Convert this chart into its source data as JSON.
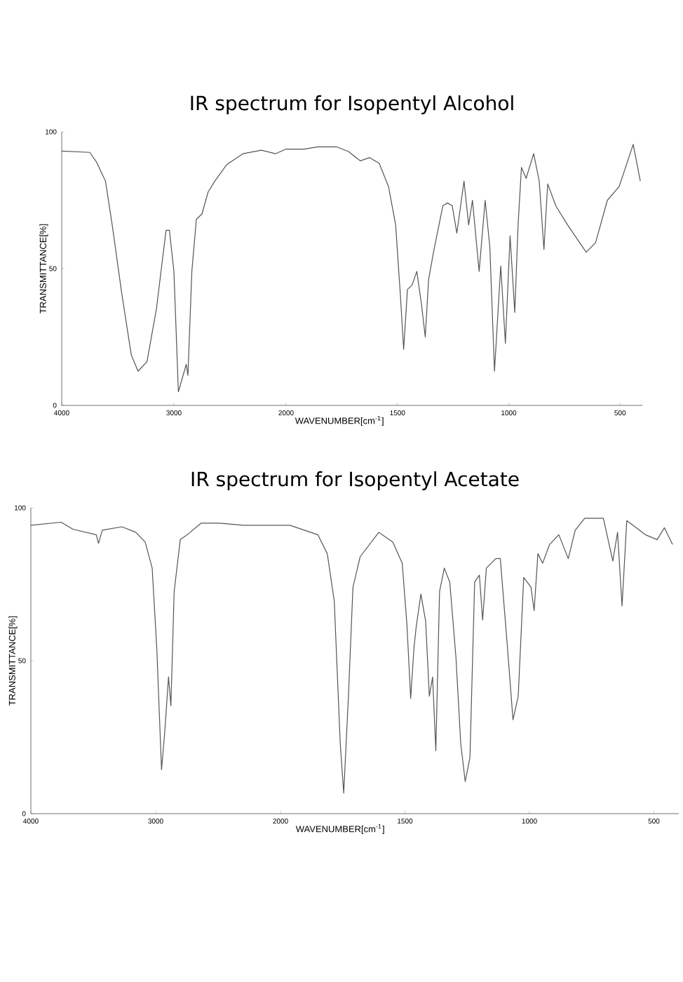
{
  "chart_data": [
    {
      "type": "line",
      "title": "IR spectrum for Isopentyl Alcohol",
      "ylabel": "TRANSMITTANCE[%]",
      "xlim": [
        4000,
        2000
      ],
      "ylim": [
        0,
        100
      ],
      "xticks": [
        4000,
        3000,
        2000
      ],
      "yticks": [
        0,
        50,
        100
      ],
      "series": [
        {
          "color": "#555555",
          "x": [
            4000,
            3750,
            3690,
            3610,
            3550,
            3465,
            3380,
            3320,
            3240,
            3155,
            3070,
            3040,
            3000,
            2960,
            2925,
            2890,
            2875,
            2840,
            2800,
            2750,
            2695,
            2635,
            2530,
            2385,
            2220,
            2095,
            2000
          ],
          "values": [
            93,
            92.5,
            89,
            82,
            66,
            41,
            18.5,
            12.5,
            16,
            35.5,
            64,
            64,
            49,
            5,
            10,
            15,
            11,
            49,
            68,
            70,
            78,
            82,
            88,
            92,
            93.3,
            92,
            93.7
          ]
        }
      ]
    },
    {
      "type": "line",
      "xlabel": "WAVENUMBER[cm$^{-1}$]",
      "xlim": [
        2000,
        400
      ],
      "ylim": [
        0,
        100
      ],
      "xticks": [
        1500,
        1000,
        500
      ],
      "tick_labels": "x",
      "series": [
        {
          "color": "#555555",
          "x": [
            2000,
            1920,
            1857,
            1772,
            1720,
            1667,
            1625,
            1582,
            1540,
            1508,
            1487,
            1472,
            1455,
            1434,
            1413,
            1392,
            1375,
            1360,
            1338,
            1296,
            1275,
            1254,
            1233,
            1201,
            1180,
            1163,
            1133,
            1106,
            1085,
            1064,
            1036,
            1015,
            994,
            973,
            958,
            943,
            922,
            888,
            863,
            842,
            825,
            789,
            736,
            652,
            610,
            557,
            504,
            441,
            409
          ],
          "values": [
            93.7,
            93.7,
            94.5,
            94.5,
            92.8,
            89.4,
            90.6,
            88.5,
            80,
            66,
            40.7,
            20.5,
            42.4,
            44,
            49,
            37,
            25,
            46,
            56,
            73,
            74,
            73,
            63,
            82,
            66,
            75,
            49,
            75,
            58,
            12.5,
            51,
            22.7,
            62,
            34,
            66,
            87,
            83,
            92,
            82,
            57,
            81,
            73,
            66,
            56,
            59.5,
            75,
            80,
            95.4,
            82
          ]
        }
      ]
    },
    {
      "type": "line",
      "title": "IR spectrum for Isopentyl Acetate",
      "ylabel": "TRANSMITTANCE[%]",
      "xlim": [
        4000,
        2000
      ],
      "ylim": [
        0,
        100
      ],
      "xticks": [
        4000,
        3000,
        2000
      ],
      "yticks": [
        0,
        50,
        100
      ],
      "series": [
        {
          "color": "#555555",
          "x": [
            4000,
            3757,
            3663,
            3476,
            3458,
            3428,
            3271,
            3159,
            3084,
            3028,
            2991,
            2953,
            2927,
            2897,
            2878,
            2852,
            2803,
            2747,
            2635,
            2485,
            2298,
            2074,
            2000
          ],
          "values": [
            94.3,
            95.3,
            93,
            91.2,
            88.4,
            92.7,
            93.8,
            92,
            88.8,
            80.3,
            54,
            14.4,
            26.8,
            44.7,
            35.3,
            72.6,
            89.6,
            91.2,
            95,
            95,
            94.3,
            94.3,
            94.3
          ]
        }
      ]
    },
    {
      "type": "line",
      "xlabel": "WAVENUMBER[cm$^{-1}$]",
      "xlim": [
        2000,
        400
      ],
      "ylim": [
        0,
        100
      ],
      "xticks": [
        1500,
        1000,
        500
      ],
      "tick_labels": "x",
      "series": [
        {
          "color": "#555555",
          "x": [
            2000,
            1962,
            1850,
            1812,
            1784,
            1760,
            1746,
            1727,
            1709,
            1680,
            1605,
            1549,
            1511,
            1492,
            1477,
            1464,
            1455,
            1436,
            1417,
            1402,
            1389,
            1376,
            1361,
            1342,
            1320,
            1295,
            1276,
            1258,
            1239,
            1220,
            1201,
            1188,
            1173,
            1135,
            1117,
            1088,
            1066,
            1045,
            1023,
            994,
            981,
            966,
            947,
            919,
            882,
            844,
            816,
            778,
            703,
            665,
            646,
            628,
            609,
            534,
            487,
            458,
            425
          ],
          "values": [
            94.3,
            94.3,
            91.2,
            85,
            69.5,
            23,
            6.7,
            38.4,
            74,
            84,
            92,
            88.8,
            81.9,
            61.7,
            37.7,
            54,
            61,
            71.8,
            63,
            38.4,
            44.7,
            20.6,
            72.6,
            80.3,
            75.7,
            50.9,
            23,
            10.5,
            18.3,
            75.7,
            78,
            63.3,
            80.3,
            83.4,
            83.4,
            54,
            30.7,
            38.4,
            77.2,
            74.1,
            66.4,
            85,
            81.9,
            88,
            91.2,
            83.4,
            92.7,
            96.6,
            96.6,
            82.6,
            92,
            67.9,
            95.8,
            91.2,
            89.6,
            93.5,
            88
          ]
        }
      ]
    }
  ]
}
